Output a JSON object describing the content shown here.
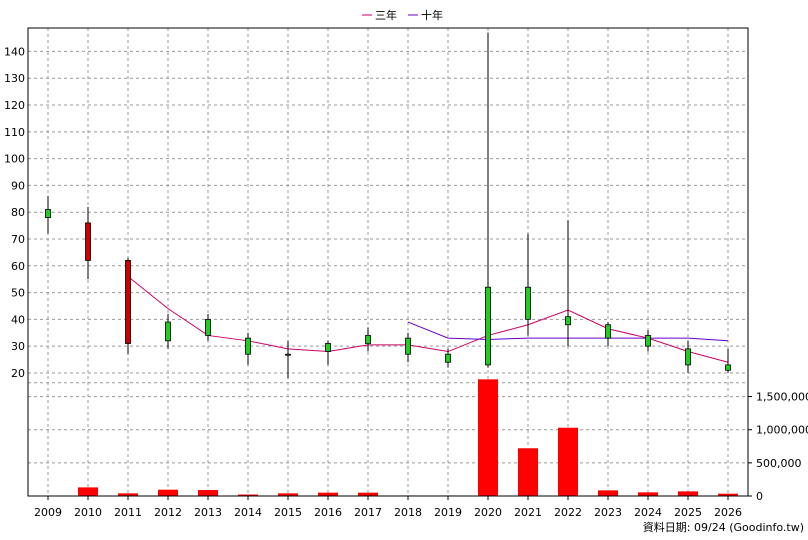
{
  "chart_data": {
    "type": "candlestick",
    "legend": {
      "placement": "top-center",
      "items": [
        {
          "label": "三年",
          "color": "#cc0066"
        },
        {
          "label": "十年",
          "color": "#6600cc"
        }
      ]
    },
    "x_labels": [
      "2009",
      "2010",
      "2011",
      "2012",
      "2013",
      "2014",
      "2015",
      "2016",
      "2017",
      "2018",
      "2019",
      "2020",
      "2021",
      "2022",
      "2023",
      "2024",
      "2025",
      "2026"
    ],
    "price_axis": {
      "ticks": [
        "20",
        "30",
        "40",
        "50",
        "60",
        "70",
        "80",
        "90",
        "100",
        "110",
        "120",
        "130",
        "140"
      ],
      "range": [
        17,
        148
      ]
    },
    "volume_axis": {
      "ticks": [
        "0",
        "500,000",
        "1,000,000",
        "1,500,000"
      ],
      "range": [
        0,
        1750000
      ]
    },
    "candles": [
      {
        "year": "2009",
        "open": 78,
        "close": 81,
        "high": 86,
        "low": 72
      },
      {
        "year": "2010",
        "open": 76,
        "close": 62,
        "high": 82,
        "low": 55
      },
      {
        "year": "2011",
        "open": 62,
        "close": 31,
        "high": 63,
        "low": 27
      },
      {
        "year": "2012",
        "open": 32,
        "close": 39,
        "high": 42,
        "low": 29
      },
      {
        "year": "2013",
        "open": 34,
        "close": 40,
        "high": 42,
        "low": 32
      },
      {
        "year": "2014",
        "open": 27,
        "close": 33,
        "high": 35,
        "low": 23
      },
      {
        "year": "2015",
        "open": 27,
        "close": 27,
        "high": 32,
        "low": 18
      },
      {
        "year": "2016",
        "open": 28,
        "close": 31,
        "high": 32,
        "low": 23
      },
      {
        "year": "2017",
        "open": 31,
        "close": 34,
        "high": 37,
        "low": 28
      },
      {
        "year": "2018",
        "open": 27,
        "close": 33,
        "high": 35,
        "low": 24
      },
      {
        "year": "2019",
        "open": 24,
        "close": 27,
        "high": 29,
        "low": 22
      },
      {
        "year": "2020",
        "open": 23,
        "close": 52,
        "high": 147,
        "low": 22
      },
      {
        "year": "2021",
        "open": 40,
        "close": 52,
        "high": 72,
        "low": 34
      },
      {
        "year": "2022",
        "open": 38,
        "close": 41,
        "high": 77,
        "low": 30
      },
      {
        "year": "2023",
        "open": 33,
        "close": 38,
        "high": 39,
        "low": 30
      },
      {
        "year": "2024",
        "open": 30,
        "close": 34,
        "high": 36,
        "low": 28
      },
      {
        "year": "2025",
        "open": 23,
        "close": 29,
        "high": 32,
        "low": 20
      },
      {
        "year": "2026",
        "open": 21,
        "close": 23,
        "high": 29,
        "low": 20
      }
    ],
    "up_color": "#22cc22",
    "down_color": "#cc0000",
    "volumes": [
      {
        "year": "2009",
        "value": 0
      },
      {
        "year": "2010",
        "value": 130000
      },
      {
        "year": "2011",
        "value": 40000
      },
      {
        "year": "2012",
        "value": 95000
      },
      {
        "year": "2013",
        "value": 90000
      },
      {
        "year": "2014",
        "value": 22000
      },
      {
        "year": "2015",
        "value": 40000
      },
      {
        "year": "2016",
        "value": 50000
      },
      {
        "year": "2017",
        "value": 50000
      },
      {
        "year": "2018",
        "value": 8000
      },
      {
        "year": "2019",
        "value": 8000
      },
      {
        "year": "2020",
        "value": 1760000
      },
      {
        "year": "2021",
        "value": 720000
      },
      {
        "year": "2022",
        "value": 1030000
      },
      {
        "year": "2023",
        "value": 85000
      },
      {
        "year": "2024",
        "value": 55000
      },
      {
        "year": "2025",
        "value": 70000
      },
      {
        "year": "2026",
        "value": 35000
      }
    ],
    "volume_color": "#ff0000",
    "series": [
      {
        "name": "三年",
        "color": "#cc0066",
        "points": [
          [
            "2011",
            56
          ],
          [
            "2012",
            44
          ],
          [
            "2013",
            34
          ],
          [
            "2014",
            32
          ],
          [
            "2015",
            29
          ],
          [
            "2016",
            28
          ],
          [
            "2017",
            30.5
          ],
          [
            "2018",
            30.5
          ],
          [
            "2019",
            28
          ],
          [
            "2020",
            34
          ],
          [
            "2021",
            38
          ],
          [
            "2022",
            43.5
          ],
          [
            "2023",
            36.5
          ],
          [
            "2024",
            33
          ],
          [
            "2025",
            28
          ],
          [
            "2026",
            24
          ]
        ]
      },
      {
        "name": "十年",
        "color": "#6600cc",
        "points": [
          [
            "2018",
            39
          ],
          [
            "2019",
            33
          ],
          [
            "2020",
            32.5
          ],
          [
            "2021",
            33
          ],
          [
            "2022",
            33
          ],
          [
            "2023",
            33
          ],
          [
            "2024",
            33
          ],
          [
            "2025",
            33
          ],
          [
            "2026",
            32
          ]
        ]
      }
    ],
    "grid": true,
    "footer": "資料日期: 09/24 (Goodinfo.tw)"
  }
}
